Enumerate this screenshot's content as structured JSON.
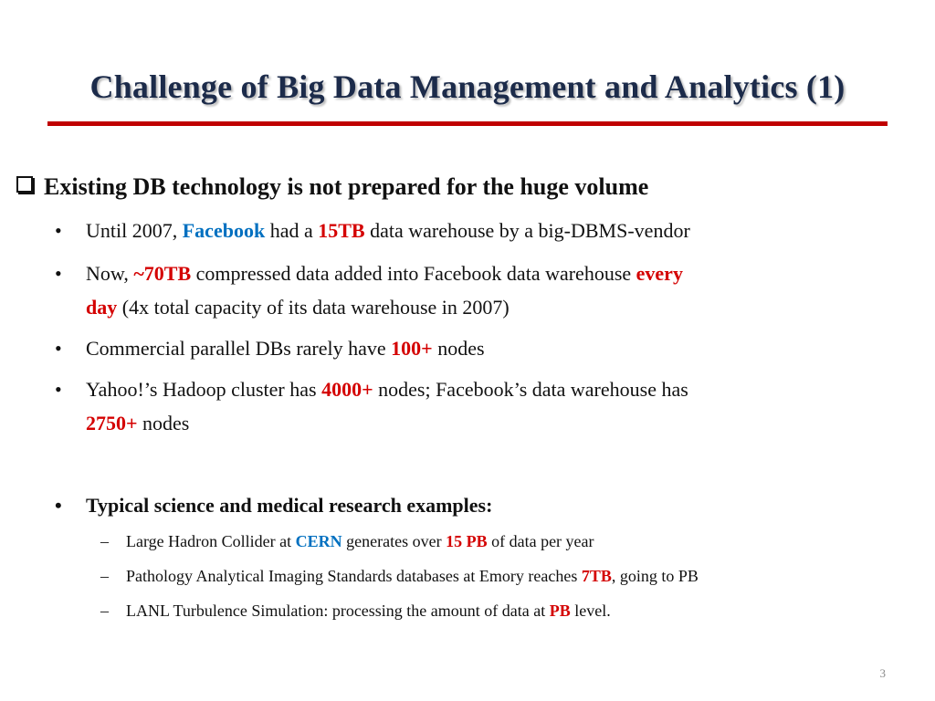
{
  "title": "Challenge of Big Data Management and Analytics (1)",
  "heading": "Existing DB technology is not prepared for  the huge volume",
  "bullets": {
    "b1": {
      "p1": "Until 2007, ",
      "facebook": "Facebook",
      "p2": " had a ",
      "tb15": "15TB",
      "p3": " data warehouse by a big-DBMS-vendor"
    },
    "b2": {
      "p1": "Now, ",
      "tb70": "~70TB",
      "p2": " compressed data added into Facebook data warehouse ",
      "every": "every",
      "day": "day",
      "p3": " (4x total capacity of its data warehouse in 2007)"
    },
    "b3": {
      "p1": "Commercial parallel DBs rarely have ",
      "n100": "100+",
      "p2": " nodes"
    },
    "b4": {
      "p1": " Yahoo!’s Hadoop cluster  has ",
      "n4000": "4000+",
      "p2": " nodes; Facebook’s data warehouse has",
      "n2750": "2750+",
      "p3": " nodes"
    },
    "b5": {
      "text": "Typical science and medical research examples:"
    }
  },
  "subs": {
    "s1": {
      "p1": "Large Hadron Collider at ",
      "cern": "CERN",
      "p2": " generates over ",
      "pb15": "15 PB",
      "p3": " of data per year"
    },
    "s2": {
      "p1": "Pathology Analytical Imaging Standards databases at Emory reaches ",
      "tb7": "7TB",
      "p2": ", going to PB"
    },
    "s3": {
      "p1": " LANL Turbulence Simulation: processing the amount of data at ",
      "pb": "PB",
      "p2": " level."
    }
  },
  "page_number": "3",
  "colors": {
    "title": "#1c2b4a",
    "rule": "#c00000",
    "highlight_red": "#d40000",
    "highlight_blue": "#0070c0"
  }
}
